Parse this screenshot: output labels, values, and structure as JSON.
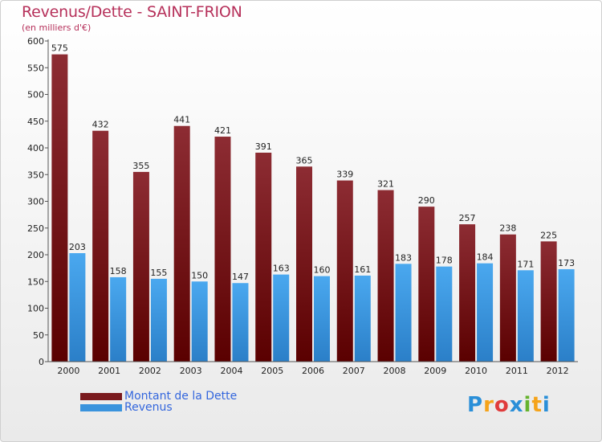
{
  "chart_data": {
    "type": "bar",
    "title": "Revenus/Dette - SAINT-FRION",
    "subtitle": "(en milliers d'€)",
    "categories": [
      "2000",
      "2001",
      "2002",
      "2003",
      "2004",
      "2005",
      "2006",
      "2007",
      "2008",
      "2009",
      "2010",
      "2011",
      "2012"
    ],
    "series": [
      {
        "name": "Montant de la Dette",
        "color": "#7a1a1e",
        "values": [
          575,
          432,
          355,
          441,
          421,
          391,
          365,
          339,
          321,
          290,
          257,
          238,
          225
        ]
      },
      {
        "name": "Revenus",
        "color": "#3a93dd",
        "values": [
          203,
          158,
          155,
          150,
          147,
          163,
          160,
          161,
          183,
          178,
          184,
          171,
          173
        ]
      }
    ],
    "ylim": [
      0,
      600
    ],
    "yticks": [
      0,
      50,
      100,
      150,
      200,
      250,
      300,
      350,
      400,
      450,
      500,
      550,
      600
    ],
    "grid": false,
    "legend_position": "bottom-left"
  },
  "logo": {
    "letters": [
      "P",
      "r",
      "o",
      "x",
      "i",
      "t",
      "i"
    ],
    "colors": [
      "#2a8fd8",
      "#f5a31a",
      "#e03c3c",
      "#2a8fd8",
      "#66b32e",
      "#f5a31a",
      "#2a8fd8"
    ]
  }
}
